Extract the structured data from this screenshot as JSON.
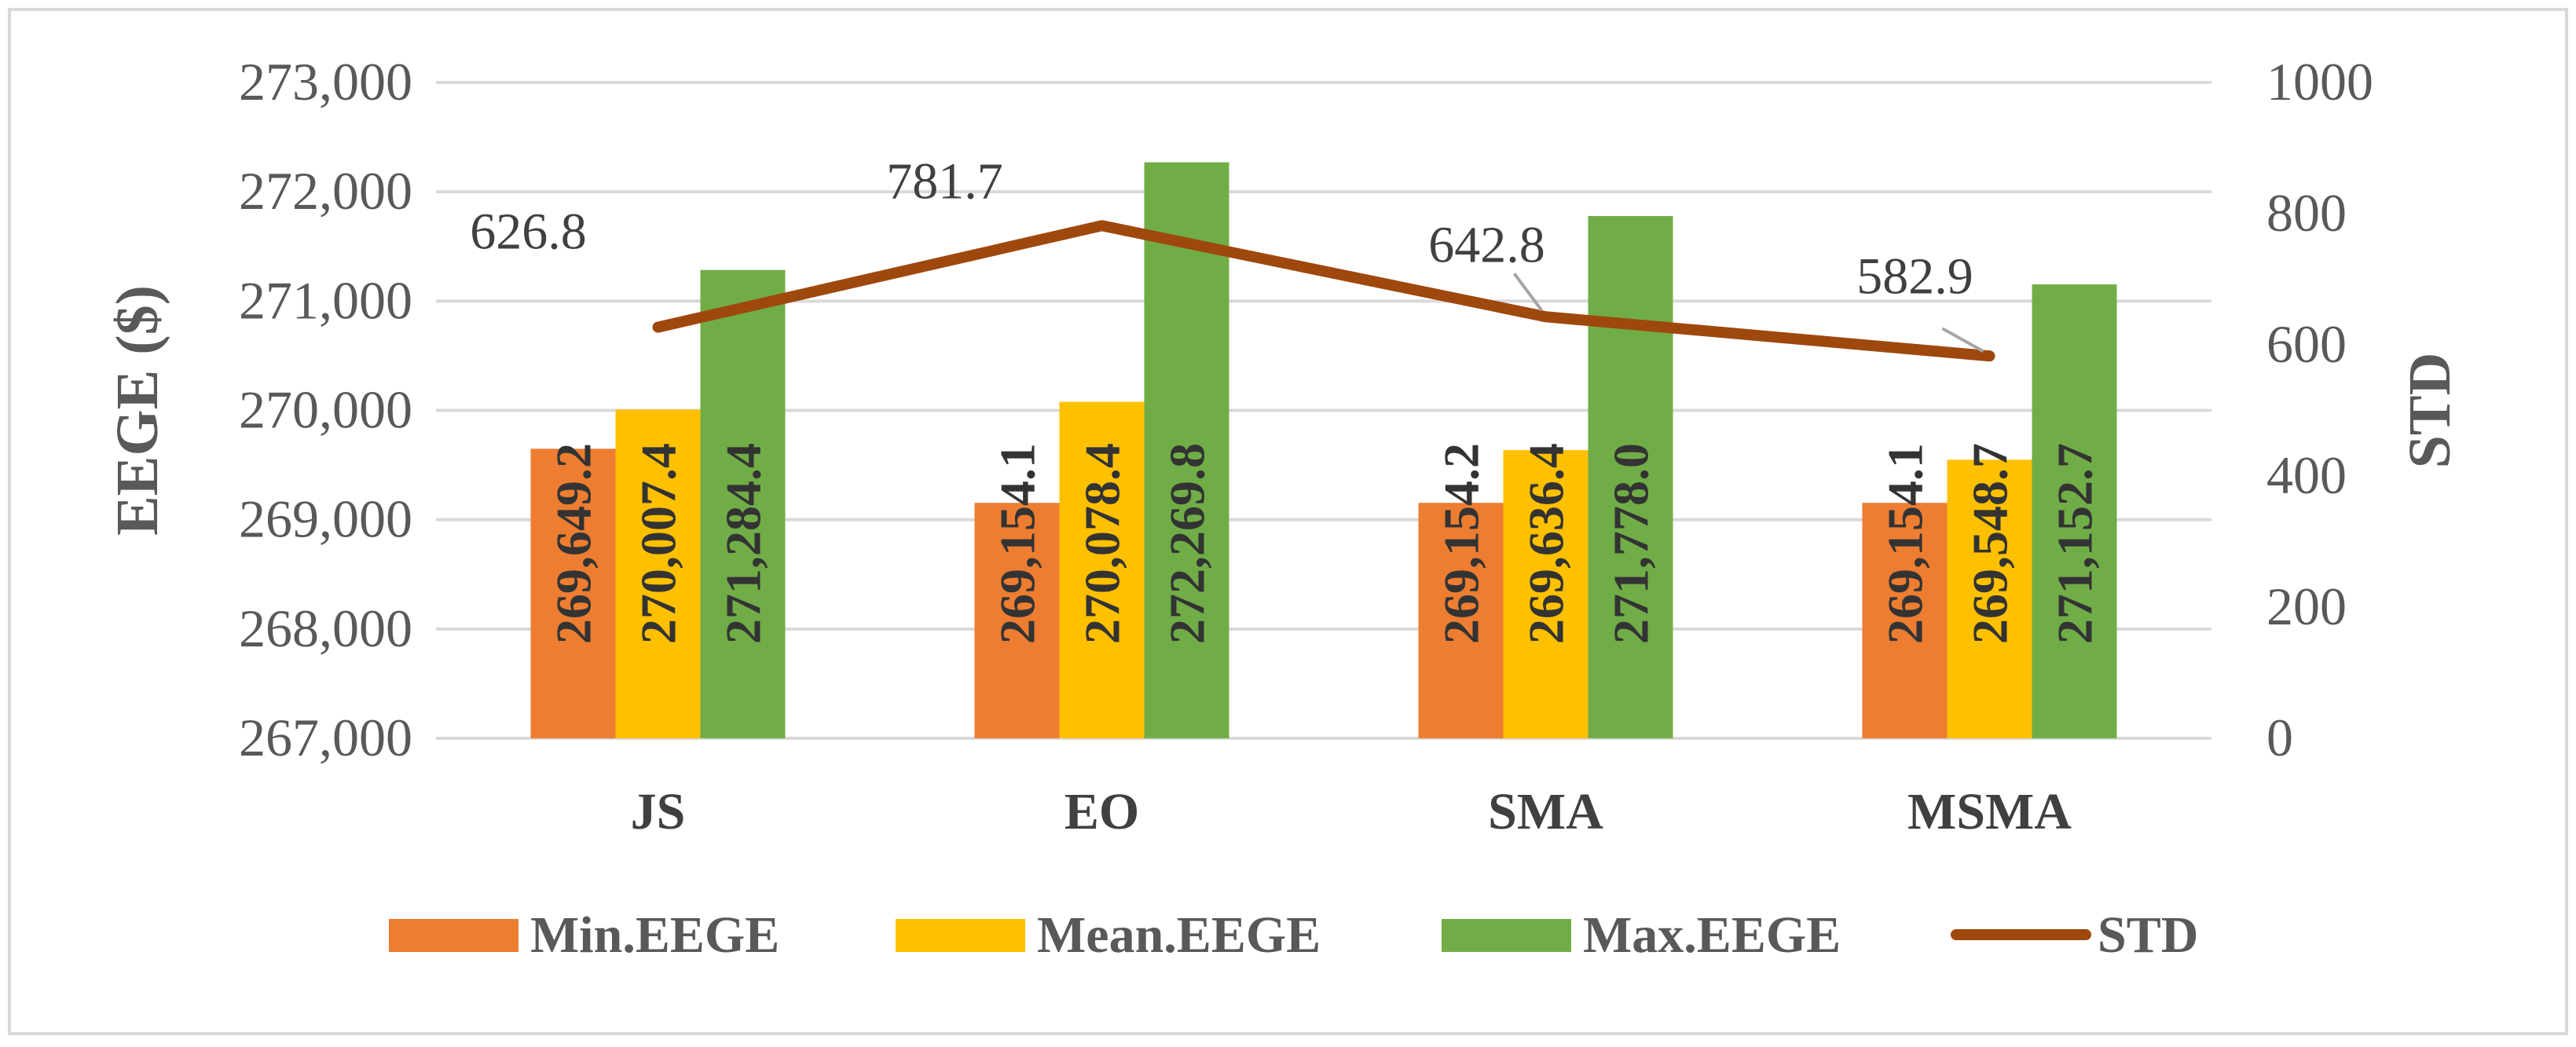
{
  "chart_data": {
    "type": "bar",
    "title": "",
    "categories": [
      "JS",
      "EO",
      "SMA",
      "MSMA"
    ],
    "series": [
      {
        "name": "Min.EEGE",
        "values": [
          269649.2,
          269154.1,
          269154.2,
          269154.1
        ],
        "labels": [
          "269,649.2",
          "269,154.1",
          "269,154.2",
          "269,154.1"
        ],
        "color": "#ED7D31"
      },
      {
        "name": "Mean.EEGE",
        "values": [
          270007.4,
          270078.4,
          269636.4,
          269548.7
        ],
        "labels": [
          "270,007.4",
          "270,078.4",
          "269,636.4",
          "269,548.7"
        ],
        "color": "#FFC000"
      },
      {
        "name": "Max.EEGE",
        "values": [
          271284.4,
          272269.8,
          271778.0,
          271152.7
        ],
        "labels": [
          "271,284.4",
          "272,269.8",
          "271,778.0",
          "271,152.7"
        ],
        "color": "#70AD47"
      }
    ],
    "line_series": {
      "name": "STD",
      "axis": "secondary",
      "values": [
        626.8,
        781.7,
        642.8,
        582.9
      ],
      "labels": [
        "626.8",
        "781.7",
        "642.8",
        "582.9"
      ],
      "color": "#9E480E"
    },
    "ylabel": "EEGE ($)",
    "y2label": "STD",
    "ylim": [
      267000,
      273000
    ],
    "yticks": [
      267000,
      268000,
      269000,
      270000,
      271000,
      272000,
      273000
    ],
    "ytick_labels": [
      "267,000",
      "268,000",
      "269,000",
      "270,000",
      "271,000",
      "272,000",
      "273,000"
    ],
    "y2lim": [
      0,
      1000
    ],
    "y2ticks": [
      0,
      200,
      400,
      600,
      800,
      1000
    ],
    "y2tick_labels": [
      "0",
      "200",
      "400",
      "600",
      "800",
      "1000"
    ],
    "legend": [
      "Min.EEGE",
      "Mean.EEGE",
      "Max.EEGE",
      "STD"
    ],
    "legend_position": "bottom",
    "grid": true
  }
}
